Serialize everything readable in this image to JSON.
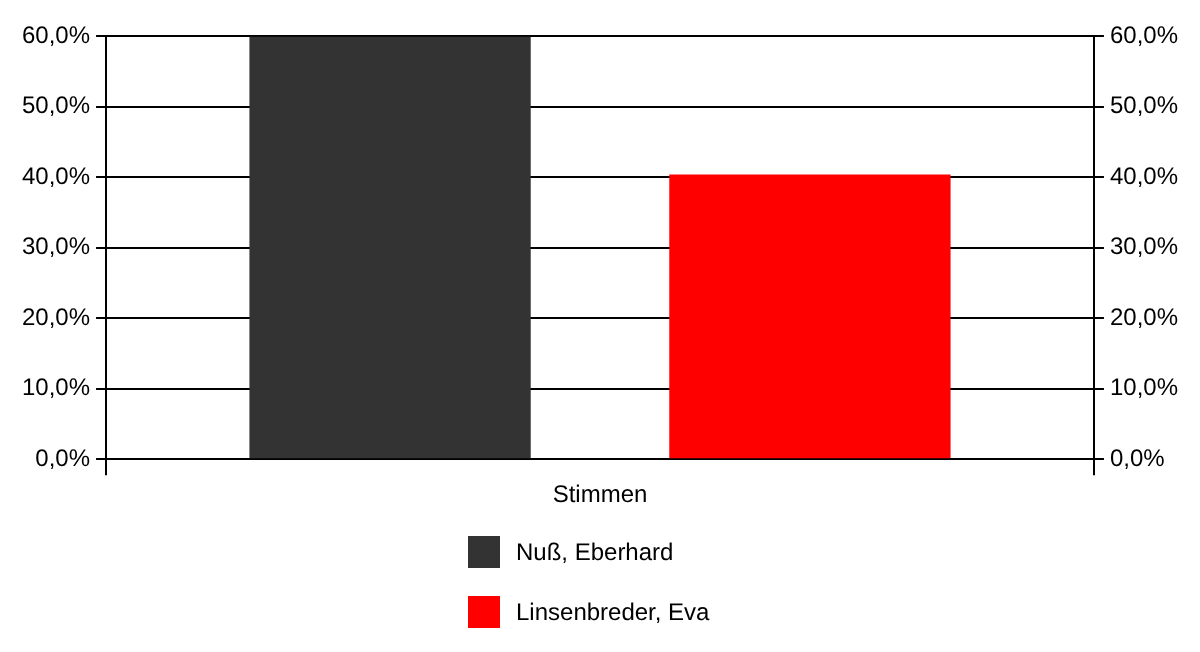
{
  "chart_data": {
    "type": "bar",
    "categories": [
      "Stimmen"
    ],
    "series": [
      {
        "name": "Nuß, Eberhard",
        "color": "#333333",
        "values": [
          60
        ]
      },
      {
        "name": "Linsenbreder, Eva",
        "color": "#ff0000",
        "values": [
          40.4
        ]
      }
    ],
    "ylim": [
      0,
      60
    ],
    "yticks": [
      {
        "value": 0,
        "label": "0,0%"
      },
      {
        "value": 10,
        "label": "10,0%"
      },
      {
        "value": 20,
        "label": "20,0%"
      },
      {
        "value": 30,
        "label": "30,0%"
      },
      {
        "value": 40,
        "label": "40,0%"
      },
      {
        "value": 50,
        "label": "50,0%"
      },
      {
        "value": 60,
        "label": "60,0%"
      }
    ],
    "grid": "y",
    "legend": "bottom"
  }
}
